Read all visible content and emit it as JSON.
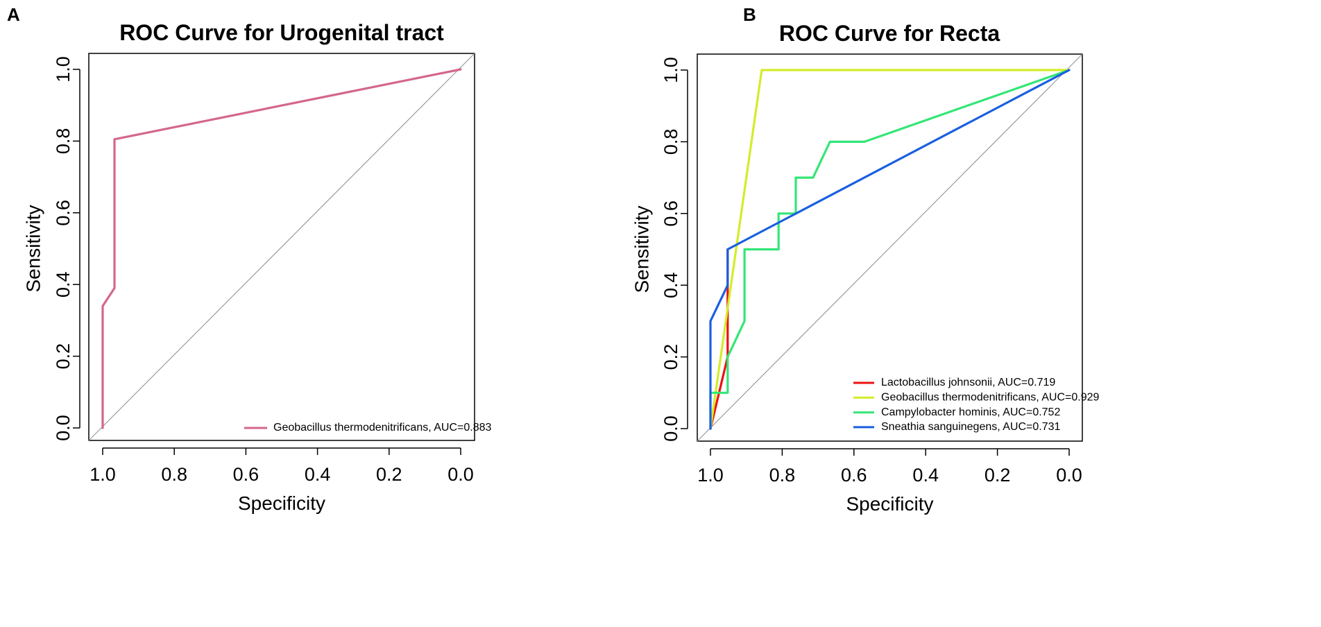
{
  "chart_data": [
    {
      "type": "line",
      "panel": "A",
      "title": "ROC Curve for Urogenital tract",
      "xlabel": "Specificity",
      "ylabel": "Sensitivity",
      "xlim": [
        1.0,
        0.0
      ],
      "ylim": [
        0.0,
        1.0
      ],
      "x_ticks": [
        "1.0",
        "0.8",
        "0.6",
        "0.4",
        "0.2",
        "0.0"
      ],
      "y_ticks": [
        "0.0",
        "0.2",
        "0.4",
        "0.6",
        "0.8",
        "1.0"
      ],
      "legend_position": "bottom-right",
      "series": [
        {
          "name": "Geobacillus thermodenitrificans, AUC=0.883",
          "color": "#d4678a",
          "x": [
            1.0,
            1.0,
            0.967,
            0.967,
            0.0
          ],
          "y": [
            0.0,
            0.34,
            0.39,
            0.805,
            1.0
          ]
        }
      ]
    },
    {
      "type": "line",
      "panel": "B",
      "title": "ROC Curve for Recta",
      "xlabel": "Specificity",
      "ylabel": "Sensitivity",
      "xlim": [
        1.0,
        0.0
      ],
      "ylim": [
        0.0,
        1.0
      ],
      "x_ticks": [
        "1.0",
        "0.8",
        "0.6",
        "0.4",
        "0.2",
        "0.0"
      ],
      "y_ticks": [
        "0.0",
        "0.2",
        "0.4",
        "0.6",
        "0.8",
        "1.0"
      ],
      "legend_position": "bottom-right",
      "series": [
        {
          "name": "Lactobacillus johnsonii, AUC=0.719",
          "color": "#ee1111",
          "x": [
            1.0,
            0.952,
            0.952,
            0.952
          ],
          "y": [
            0.0,
            0.2,
            0.4,
            0.5
          ]
        },
        {
          "name": "Geobacillus thermodenitrificans, AUC=0.929",
          "color": "#d4ec2a",
          "x": [
            1.0,
            0.857,
            0.0
          ],
          "y": [
            0.0,
            1.0,
            1.0
          ]
        },
        {
          "name": "Campylobacter hominis, AUC=0.752",
          "color": "#33e676",
          "x": [
            1.0,
            1.0,
            0.952,
            0.952,
            0.905,
            0.905,
            0.81,
            0.81,
            0.762,
            0.762,
            0.714,
            0.667,
            0.571,
            0.0
          ],
          "y": [
            0.0,
            0.1,
            0.1,
            0.2,
            0.3,
            0.5,
            0.5,
            0.6,
            0.6,
            0.7,
            0.7,
            0.8,
            0.8,
            1.0
          ]
        },
        {
          "name": "Sneathia sanguinegens, AUC=0.731",
          "color": "#1a5fe0",
          "x": [
            1.0,
            1.0,
            0.952,
            0.952,
            0.0
          ],
          "y": [
            0.0,
            0.3,
            0.4,
            0.5,
            1.0
          ]
        }
      ]
    }
  ]
}
